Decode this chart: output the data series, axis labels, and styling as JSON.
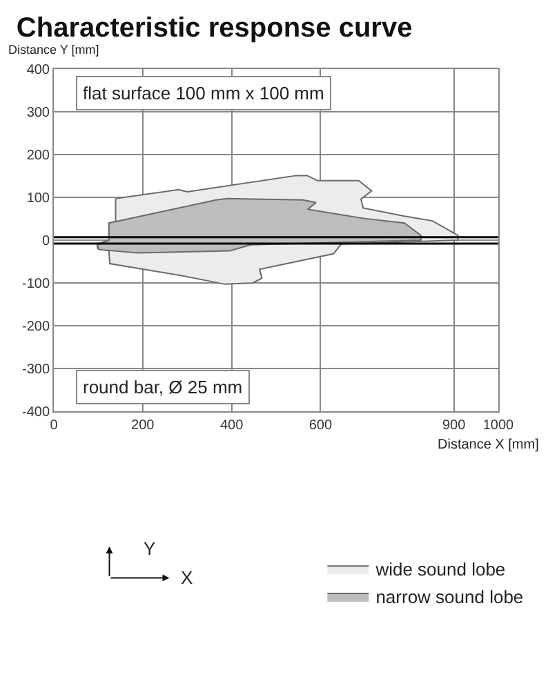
{
  "chart_data": {
    "type": "area",
    "title": "Characteristic response curve",
    "xlabel": "Distance X [mm]",
    "ylabel": "Distance Y [mm]",
    "xlim": [
      0,
      1000
    ],
    "xticks": [
      0,
      200,
      400,
      600,
      900,
      1000
    ],
    "ylim": [
      -400,
      400
    ],
    "yticks": [
      -400,
      -300,
      -200,
      -100,
      0,
      100,
      200,
      300,
      400
    ],
    "grid": true,
    "legend": "bottom",
    "series": [
      {
        "name": "wide sound lobe",
        "color": "#ececec",
        "x": [
          139,
          280,
          300,
          546,
          570,
          593,
          686,
          715,
          691,
          696,
          789,
          852,
          909,
          909,
          647,
          629,
          463,
          468,
          448,
          385,
          282,
          126,
          124,
          98,
          98,
          124,
          124,
          139,
          139
        ],
        "values": [
          97,
          118,
          113,
          151,
          151,
          139,
          139,
          115,
          96,
          75,
          56,
          45,
          11,
          0,
          -9,
          -32,
          -68,
          -89,
          -100,
          -103,
          -82,
          -55,
          -25,
          -19,
          -9,
          0,
          40,
          43,
          97
        ]
      },
      {
        "name": "narrow sound lobe",
        "color": "#bdbdbd",
        "x": [
          124,
          365,
          390,
          561,
          590,
          571,
          696,
          789,
          826,
          826,
          443,
          396,
          189,
          101,
          98,
          124,
          124
        ],
        "values": [
          40,
          94,
          97,
          94,
          88,
          72,
          51,
          40,
          11,
          0,
          -11,
          -25,
          -30,
          -22,
          -11,
          0,
          40
        ]
      }
    ],
    "ref_lines": [
      {
        "axis": "y",
        "value": 7,
        "color": "#000000"
      },
      {
        "axis": "y",
        "value": -8,
        "color": "#000000"
      }
    ],
    "annotations": [
      "flat surface 100 mm x 100 mm",
      "round bar, Ø 25 mm",
      "Y",
      "X"
    ]
  }
}
